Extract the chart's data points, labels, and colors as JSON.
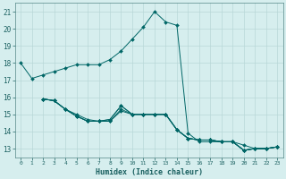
{
  "xlabel": "Humidex (Indice chaleur)",
  "ylabel": "",
  "bg_color": "#d6eeee",
  "line_color": "#006666",
  "xlim": [
    -0.5,
    23.5
  ],
  "ylim": [
    12.5,
    21.5
  ],
  "yticks": [
    13,
    14,
    15,
    16,
    17,
    18,
    19,
    20,
    21
  ],
  "xticks": [
    0,
    1,
    2,
    3,
    4,
    5,
    6,
    7,
    8,
    9,
    10,
    11,
    12,
    13,
    14,
    15,
    16,
    17,
    18,
    19,
    20,
    21,
    22,
    23
  ],
  "xtick_labels": [
    "0",
    "1",
    "2",
    "3",
    "4",
    "5",
    "6",
    "7",
    "8",
    "9",
    "10",
    "11",
    "12",
    "13",
    "14",
    "15",
    "16",
    "17",
    "18",
    "19",
    "20",
    "21",
    "22",
    "23"
  ],
  "lines": [
    {
      "x": [
        0,
        1,
        2,
        3,
        4,
        5,
        6,
        7,
        8,
        9,
        10,
        11,
        12,
        13,
        14,
        15,
        16,
        17,
        18,
        19,
        20,
        21,
        22,
        23
      ],
      "y": [
        18.0,
        17.1,
        17.3,
        17.5,
        17.7,
        17.9,
        17.9,
        17.9,
        18.2,
        18.7,
        19.4,
        20.1,
        21.0,
        20.4,
        20.2,
        13.9,
        13.4,
        13.4,
        13.4,
        13.4,
        13.2,
        13.0,
        13.0,
        13.1
      ]
    },
    {
      "x": [
        2,
        3,
        4,
        5,
        6,
        7,
        8,
        9,
        10,
        11,
        12,
        13,
        14,
        15,
        16,
        17,
        18,
        19,
        20,
        21,
        22,
        23
      ],
      "y": [
        15.9,
        15.8,
        15.3,
        15.0,
        14.7,
        14.6,
        14.6,
        15.2,
        15.0,
        15.0,
        15.0,
        15.0,
        14.1,
        13.6,
        13.5,
        13.5,
        13.4,
        13.4,
        12.9,
        13.0,
        13.0,
        13.1
      ]
    },
    {
      "x": [
        2,
        3,
        4,
        5,
        6,
        7,
        8,
        9,
        10,
        11,
        12,
        13,
        14,
        15,
        16,
        17,
        18,
        19,
        20,
        21,
        22,
        23
      ],
      "y": [
        15.9,
        15.8,
        15.3,
        14.9,
        14.6,
        14.6,
        14.6,
        15.3,
        15.0,
        15.0,
        15.0,
        15.0,
        14.1,
        13.6,
        13.5,
        13.5,
        13.4,
        13.4,
        12.9,
        13.0,
        13.0,
        13.1
      ]
    },
    {
      "x": [
        2,
        3,
        4,
        5,
        6,
        7,
        8,
        9,
        10,
        11,
        12,
        13,
        14,
        15,
        16,
        17,
        18,
        19,
        20,
        21,
        22,
        23
      ],
      "y": [
        15.9,
        15.8,
        15.3,
        14.9,
        14.6,
        14.6,
        14.7,
        15.5,
        15.0,
        15.0,
        15.0,
        15.0,
        14.1,
        13.6,
        13.5,
        13.5,
        13.4,
        13.4,
        12.9,
        13.0,
        13.0,
        13.1
      ]
    },
    {
      "x": [
        2,
        3,
        4,
        5,
        6,
        7,
        8,
        9,
        10,
        11,
        12,
        13,
        14,
        15,
        16,
        17,
        18,
        19,
        20,
        21,
        22,
        23
      ],
      "y": [
        15.9,
        15.8,
        15.3,
        14.9,
        14.6,
        14.6,
        14.7,
        15.5,
        15.0,
        15.0,
        15.0,
        15.0,
        14.1,
        13.6,
        13.5,
        13.5,
        13.4,
        13.4,
        12.9,
        13.0,
        13.0,
        13.1
      ]
    }
  ]
}
